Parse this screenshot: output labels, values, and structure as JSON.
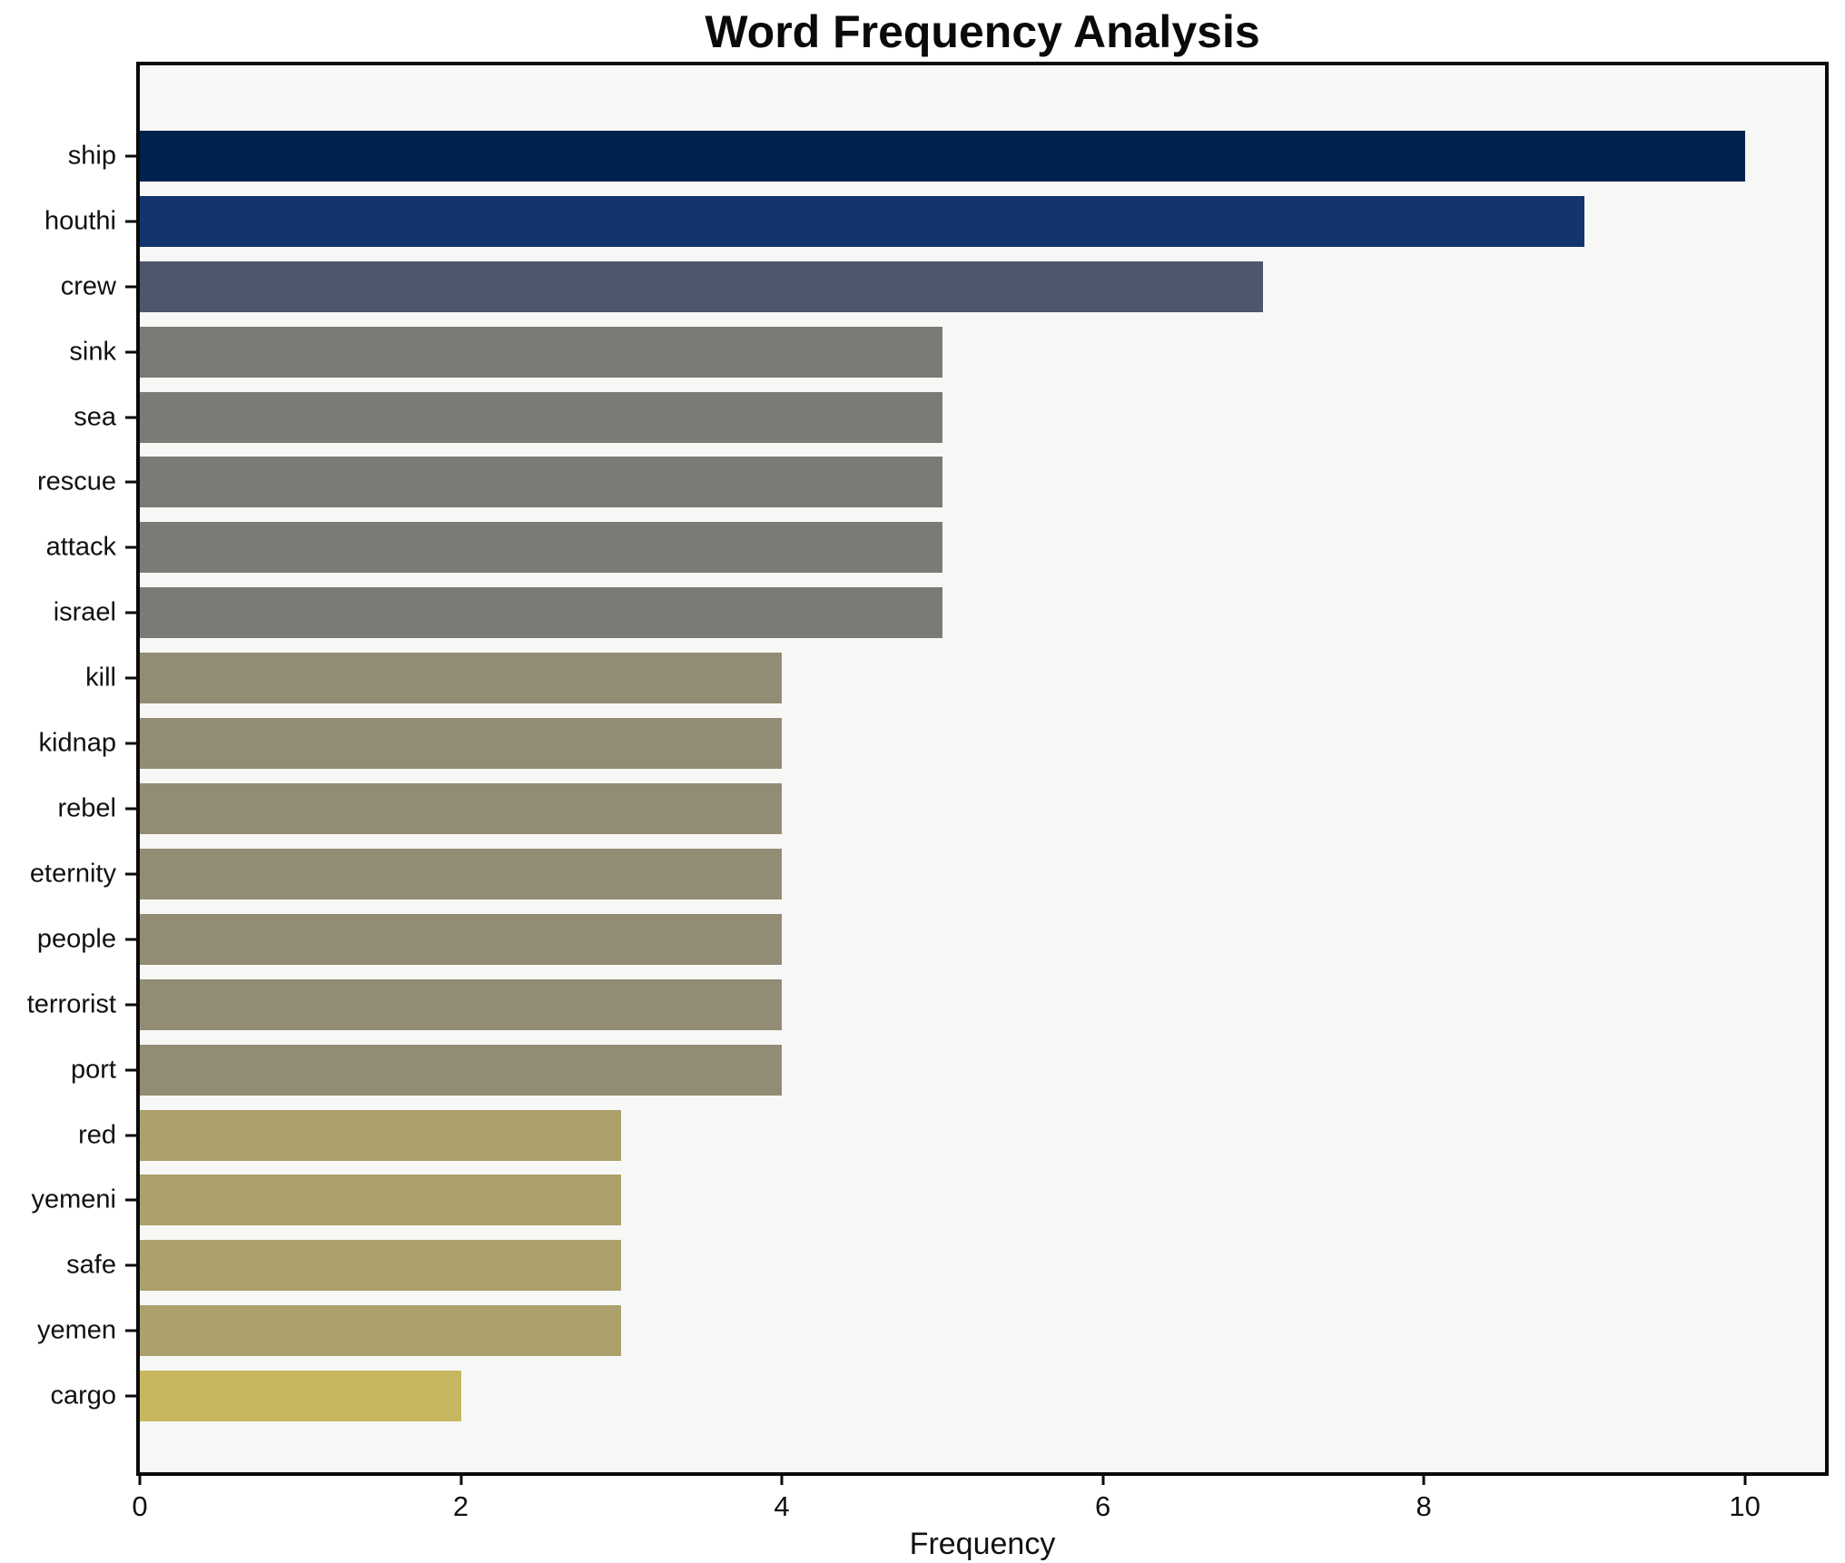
{
  "chart_data": {
    "type": "bar",
    "orientation": "horizontal",
    "title": "Word Frequency Analysis",
    "xlabel": "Frequency",
    "ylabel": "",
    "categories": [
      "ship",
      "houthi",
      "crew",
      "sink",
      "sea",
      "rescue",
      "attack",
      "israel",
      "kill",
      "kidnap",
      "rebel",
      "eternity",
      "people",
      "terrorist",
      "port",
      "red",
      "yemeni",
      "safe",
      "yemen",
      "cargo"
    ],
    "values": [
      10,
      9,
      7,
      5,
      5,
      5,
      5,
      5,
      4,
      4,
      4,
      4,
      4,
      4,
      4,
      3,
      3,
      3,
      3,
      2
    ],
    "bar_colors": [
      "#00224e",
      "#123570",
      "#4e566b",
      "#7a7a76",
      "#7a7a76",
      "#7a7a76",
      "#7a7a76",
      "#7a7a76",
      "#938c75",
      "#938c75",
      "#938c75",
      "#938c75",
      "#938c75",
      "#938c75",
      "#938c75",
      "#aca06c",
      "#aca06c",
      "#aca06c",
      "#aca06c",
      "#c7b660"
    ],
    "xlim": [
      0,
      10.5
    ],
    "xticks": [
      0,
      2,
      4,
      6,
      8,
      10
    ],
    "grid": false,
    "legend": "none",
    "plot_background": "#f7f7f6",
    "figure_background": "#ffffff",
    "spine_color": "#0a0a0a"
  }
}
